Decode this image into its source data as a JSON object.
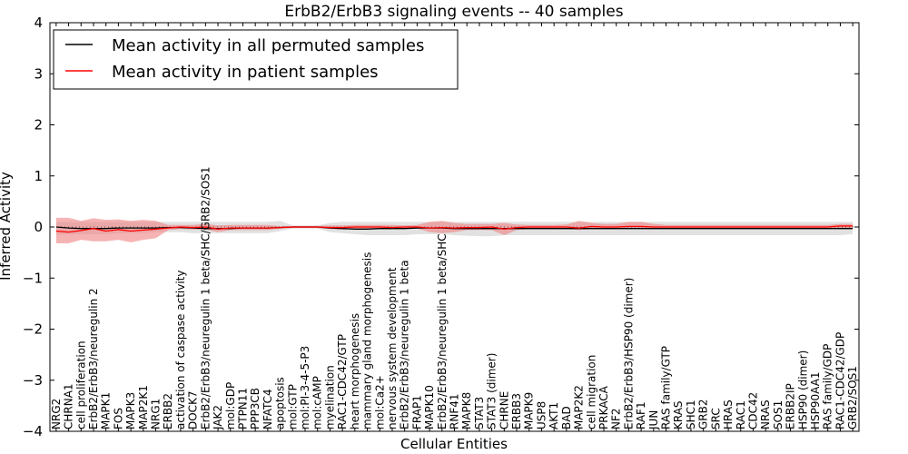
{
  "chart_data": {
    "type": "line",
    "title": "ErbB2/ErbB3 signaling events -- 40 samples",
    "xlabel": "Cellular Entities",
    "ylabel": "Inferred Activity",
    "ylim": [
      -4,
      4
    ],
    "yticks": [
      4,
      3,
      2,
      1,
      0,
      -1,
      -2,
      -3,
      -4
    ],
    "ytick_labels": [
      "4",
      "3",
      "2",
      "1",
      "0",
      "−1",
      "−2",
      "−3",
      "−4"
    ],
    "legend": {
      "position": "top-left",
      "entries": [
        {
          "label": "Mean activity in all permuted samples",
          "color": "#000000"
        },
        {
          "label": "Mean activity in patient samples",
          "color": "#ff0000"
        }
      ]
    },
    "colors": {
      "permuted": "#000000",
      "patient": "#ff0000",
      "permuted_band": "#c8c8c8",
      "patient_band": "#f08080"
    },
    "categories": [
      "NRG2",
      "CHRNA1",
      "cell proliferation",
      "ErbB2/ErbB3/neuregulin 2",
      "MAPK1",
      "FOS",
      "MAPK3",
      "MAP2K1",
      "NRG1",
      "ERBB2",
      "activation of caspase activity",
      "DOCK7",
      "ErbB2/ErbB3/neuregulin 1 beta/SHC/GRB2/SOS1",
      "JAK2",
      "mol:GDP",
      "PTPN11",
      "PPP3CB",
      "NFATC4",
      "apoptosis",
      "mol:GTP",
      "mol:PI-3-4-5-P3",
      "mol:cAMP",
      "myelination",
      "RAC1-CDC42/GTP",
      "heart morphogenesis",
      "mammary gland morphogenesis",
      "mol:Ca2+",
      "nervous system development",
      "ErbB2/ErbB3/neuregulin 1 beta",
      "FRAP1",
      "MAPK10",
      "ErbB2/ErbB3/neuregulin 1 beta/SHC",
      "RNF41",
      "MAPK8",
      "STAT3",
      "STAT3 (dimer)",
      "CHRNE",
      "ERBB3",
      "MAPK9",
      "USP8",
      "AKT1",
      "BAD",
      "MAP2K2",
      "cell migration",
      "PRKACA",
      "NF2",
      "ErbB2/ErbB3/HSP90 (dimer)",
      "RAF1",
      "JUN",
      "RAS family/GTP",
      "KRAS",
      "SHC1",
      "GRB2",
      "SRC",
      "HRAS",
      "RAC1",
      "CDC42",
      "NRAS",
      "SOS1",
      "ERBB2IP",
      "HSP90 (dimer)",
      "HSP90AA1",
      "RAS family/GDP",
      "RAC1-CDC42/GDP",
      "GRB2/SOS1"
    ],
    "series": [
      {
        "name": "Mean activity in all permuted samples",
        "values": [
          0.0,
          -0.02,
          -0.03,
          -0.03,
          -0.03,
          -0.02,
          -0.02,
          -0.02,
          -0.02,
          -0.01,
          -0.01,
          -0.02,
          -0.03,
          -0.03,
          -0.03,
          -0.02,
          -0.02,
          -0.02,
          -0.01,
          0.0,
          0.0,
          0.0,
          -0.02,
          -0.03,
          -0.04,
          -0.04,
          -0.03,
          -0.03,
          -0.03,
          -0.02,
          -0.02,
          -0.02,
          -0.03,
          -0.03,
          -0.03,
          -0.03,
          -0.03,
          -0.03,
          -0.03,
          -0.03,
          -0.03,
          -0.03,
          -0.03,
          -0.03,
          -0.03,
          -0.03,
          -0.03,
          -0.03,
          -0.03,
          -0.03,
          -0.03,
          -0.03,
          -0.03,
          -0.03,
          -0.03,
          -0.03,
          -0.03,
          -0.03,
          -0.03,
          -0.03,
          -0.03,
          -0.03,
          -0.03,
          -0.03,
          -0.03
        ],
        "band_low": [
          -0.15,
          -0.15,
          -0.14,
          -0.14,
          -0.14,
          -0.12,
          -0.12,
          -0.12,
          -0.1,
          -0.1,
          -0.1,
          -0.12,
          -0.12,
          -0.12,
          -0.12,
          -0.12,
          -0.12,
          -0.12,
          -0.08,
          -0.03,
          -0.03,
          -0.03,
          -0.1,
          -0.12,
          -0.14,
          -0.16,
          -0.16,
          -0.16,
          -0.16,
          -0.14,
          -0.14,
          -0.14,
          -0.16,
          -0.17,
          -0.18,
          -0.18,
          -0.16,
          -0.16,
          -0.16,
          -0.16,
          -0.16,
          -0.16,
          -0.16,
          -0.16,
          -0.16,
          -0.16,
          -0.16,
          -0.16,
          -0.16,
          -0.16,
          -0.16,
          -0.16,
          -0.16,
          -0.16,
          -0.16,
          -0.16,
          -0.16,
          -0.16,
          -0.16,
          -0.16,
          -0.16,
          -0.16,
          -0.16,
          -0.16,
          -0.14
        ],
        "band_high": [
          0.1,
          0.1,
          0.1,
          0.1,
          0.1,
          0.1,
          0.1,
          0.1,
          0.1,
          0.1,
          0.1,
          0.1,
          0.1,
          0.1,
          0.1,
          0.1,
          0.1,
          0.1,
          0.12,
          0.03,
          0.03,
          0.03,
          0.08,
          0.1,
          0.1,
          0.1,
          0.1,
          0.1,
          0.1,
          0.1,
          0.1,
          0.1,
          0.1,
          0.1,
          0.1,
          0.1,
          0.1,
          0.1,
          0.1,
          0.1,
          0.1,
          0.1,
          0.1,
          0.1,
          0.1,
          0.1,
          0.1,
          0.1,
          0.1,
          0.1,
          0.1,
          0.1,
          0.1,
          0.1,
          0.1,
          0.1,
          0.1,
          0.1,
          0.1,
          0.1,
          0.1,
          0.1,
          0.1,
          0.1,
          0.1
        ]
      },
      {
        "name": "Mean activity in patient samples",
        "values": [
          -0.08,
          -0.1,
          -0.07,
          -0.03,
          -0.08,
          -0.05,
          -0.08,
          -0.06,
          -0.04,
          -0.02,
          0.0,
          -0.01,
          0.0,
          -0.04,
          -0.02,
          -0.02,
          -0.02,
          -0.02,
          -0.01,
          0.0,
          0.0,
          0.0,
          -0.01,
          -0.01,
          0.0,
          0.0,
          0.0,
          -0.01,
          0.0,
          0.0,
          -0.02,
          -0.01,
          -0.02,
          -0.01,
          -0.01,
          0.0,
          -0.04,
          -0.01,
          0.0,
          0.0,
          0.0,
          0.0,
          -0.02,
          0.01,
          0.0,
          0.0,
          0.01,
          0.01,
          0.0,
          0.0,
          0.0,
          0.0,
          0.0,
          0.0,
          0.0,
          0.0,
          0.0,
          0.0,
          0.0,
          0.0,
          0.0,
          0.0,
          0.0,
          0.02,
          0.02
        ],
        "band_low": [
          -0.32,
          -0.32,
          -0.25,
          -0.28,
          -0.28,
          -0.25,
          -0.3,
          -0.25,
          -0.22,
          -0.06,
          -0.04,
          -0.05,
          -0.05,
          -0.1,
          -0.06,
          -0.06,
          -0.06,
          -0.06,
          -0.03,
          -0.02,
          -0.02,
          -0.02,
          -0.04,
          -0.05,
          -0.04,
          -0.04,
          -0.04,
          -0.04,
          -0.02,
          -0.03,
          -0.1,
          -0.12,
          -0.1,
          -0.06,
          -0.06,
          -0.06,
          -0.16,
          -0.06,
          -0.04,
          -0.04,
          -0.04,
          -0.04,
          -0.06,
          -0.04,
          -0.04,
          -0.04,
          -0.03,
          -0.03,
          -0.03,
          -0.03,
          -0.03,
          -0.03,
          -0.03,
          -0.03,
          -0.03,
          -0.03,
          -0.03,
          -0.03,
          -0.03,
          -0.03,
          -0.03,
          -0.03,
          -0.03,
          -0.02,
          -0.02
        ],
        "band_high": [
          0.18,
          0.18,
          0.12,
          0.17,
          0.14,
          0.15,
          0.12,
          0.14,
          0.12,
          0.04,
          0.04,
          0.04,
          0.06,
          0.03,
          0.04,
          0.04,
          0.04,
          0.04,
          0.02,
          0.02,
          0.02,
          0.02,
          0.03,
          0.03,
          0.04,
          0.04,
          0.04,
          0.04,
          0.03,
          0.04,
          0.1,
          0.12,
          0.08,
          0.06,
          0.06,
          0.06,
          0.08,
          0.05,
          0.04,
          0.04,
          0.04,
          0.05,
          0.12,
          0.08,
          0.06,
          0.06,
          0.1,
          0.1,
          0.06,
          0.04,
          0.04,
          0.04,
          0.04,
          0.04,
          0.04,
          0.04,
          0.04,
          0.04,
          0.04,
          0.04,
          0.04,
          0.04,
          0.04,
          0.06,
          0.06
        ]
      }
    ]
  }
}
